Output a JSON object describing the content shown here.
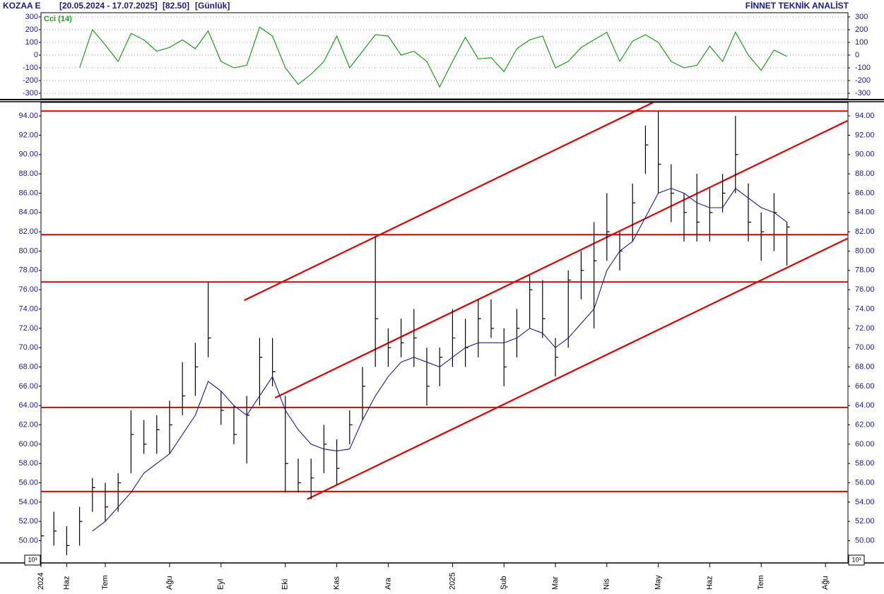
{
  "header": {
    "symbol": "KOZAA E",
    "range": "[20.05.2024 - 17.07.2025]",
    "last": "[82.50]",
    "period": "[Günlük]",
    "brand": "FİNNET TEKNİK ANALİST",
    "scale_note": "10³"
  },
  "chart_data": [
    {
      "type": "line",
      "title": "Cci (14)",
      "color": "#1e9e1e",
      "ylim": [
        -344,
        333
      ],
      "yticks": [
        300,
        200,
        100,
        0,
        -100,
        -200,
        -300
      ],
      "grid": true,
      "values": [
        null,
        null,
        null,
        -100,
        200,
        80,
        -50,
        170,
        120,
        30,
        60,
        120,
        50,
        190,
        -50,
        -100,
        -80,
        220,
        150,
        -100,
        -230,
        -150,
        -50,
        150,
        -100,
        30,
        160,
        150,
        0,
        30,
        -50,
        -250,
        -50,
        140,
        -30,
        -20,
        -130,
        50,
        120,
        150,
        -100,
        -50,
        60,
        120,
        180,
        -50,
        110,
        160,
        100,
        -50,
        -100,
        -80,
        70,
        -50,
        180,
        0,
        -120,
        40,
        -10
      ]
    },
    {
      "type": "ohlc",
      "color": "#000000",
      "ylim": [
        47.7,
        95.4
      ],
      "yticks": [
        {
          "value": 50,
          "label": "50.00"
        },
        {
          "value": 52,
          "label": "52.00"
        },
        {
          "value": 54,
          "label": "54.00"
        },
        {
          "value": 56,
          "label": "56.00"
        },
        {
          "value": 58,
          "label": "58.00"
        },
        {
          "value": 60,
          "label": "60.00"
        },
        {
          "value": 62,
          "label": "62.00"
        },
        {
          "value": 64,
          "label": "64.00"
        },
        {
          "value": 66,
          "label": "66.00"
        },
        {
          "value": 68,
          "label": "68.00"
        },
        {
          "value": 70,
          "label": "70.00"
        },
        {
          "value": 72,
          "label": "72.00"
        },
        {
          "value": 74,
          "label": "74.00"
        },
        {
          "value": 76,
          "label": "76.00"
        },
        {
          "value": 78,
          "label": "78.00"
        },
        {
          "value": 80,
          "label": "80.00"
        },
        {
          "value": 82,
          "label": "82.00"
        },
        {
          "value": 84,
          "label": "84.00"
        },
        {
          "value": 86,
          "label": "86.00"
        },
        {
          "value": 88,
          "label": "88.00"
        },
        {
          "value": 90,
          "label": "90.00"
        },
        {
          "value": 92,
          "label": "92.00"
        },
        {
          "value": 94,
          "label": "94.00"
        }
      ],
      "categories": [
        "2024",
        null,
        "Haz",
        null,
        null,
        "Tem",
        null,
        null,
        null,
        null,
        "Ağu",
        null,
        null,
        null,
        "Eyl",
        null,
        null,
        null,
        null,
        "Eki",
        null,
        null,
        null,
        "Kas",
        null,
        null,
        null,
        "Ara",
        null,
        null,
        null,
        null,
        "2025",
        null,
        null,
        null,
        "Şub",
        null,
        null,
        null,
        "Mar",
        null,
        null,
        null,
        "Nis",
        null,
        null,
        null,
        "May",
        null,
        null,
        null,
        "Haz",
        null,
        null,
        null,
        "Tem",
        null,
        null,
        null,
        null,
        "Ağu",
        null
      ],
      "high": [
        52,
        53,
        51.5,
        53.5,
        56.5,
        56,
        57,
        63.5,
        62.5,
        63,
        64.5,
        68.5,
        70.5,
        76.8,
        65.5,
        64,
        65,
        71,
        71,
        65,
        58.5,
        58.5,
        62,
        60.5,
        63.5,
        68,
        81.5,
        72,
        73,
        74,
        70,
        70,
        74,
        73,
        75,
        75,
        72,
        74,
        77.5,
        77,
        71,
        78,
        80,
        83,
        86,
        82,
        87,
        93,
        94.5,
        89,
        86,
        88,
        86.5,
        88,
        94,
        87,
        84,
        86,
        83,
        null,
        null,
        null,
        null
      ],
      "low": [
        50,
        49.5,
        48.5,
        49.5,
        53,
        52,
        53,
        57,
        59,
        59,
        59,
        63,
        65,
        69,
        62,
        60,
        58,
        64,
        66,
        55,
        55,
        54.3,
        57,
        55.8,
        60,
        62.5,
        68,
        68,
        69,
        68,
        64,
        66,
        68,
        68,
        69,
        71,
        66,
        69,
        72,
        71,
        67,
        70,
        75,
        72,
        79,
        78,
        81,
        88,
        86,
        83,
        81,
        81,
        81,
        84,
        86,
        81,
        79,
        80,
        78.5,
        null,
        null,
        null,
        null
      ],
      "close": [
        50.5,
        51,
        49.5,
        52,
        55.5,
        53.5,
        56,
        61,
        60,
        61.5,
        62,
        65,
        68,
        71,
        63.5,
        61,
        63,
        69,
        67.5,
        58,
        56,
        56.5,
        60,
        57.5,
        62,
        66,
        73,
        70,
        70.5,
        71,
        66,
        69,
        71,
        70,
        73,
        72,
        68,
        72,
        76,
        73,
        69,
        77,
        78,
        79,
        82,
        80,
        85,
        91,
        89,
        86,
        84,
        83,
        84,
        86,
        90,
        83,
        82,
        84,
        82.5,
        null,
        null,
        null,
        null
      ],
      "ma": {
        "color": "#1a1aa0",
        "values": [
          null,
          null,
          null,
          null,
          51,
          52,
          53.5,
          55,
          57,
          58,
          59,
          61,
          63,
          66.5,
          65.5,
          64,
          63,
          65,
          67,
          63.5,
          61.5,
          60,
          59.5,
          59.3,
          59.5,
          62.5,
          65,
          67,
          68.5,
          69,
          68.5,
          68,
          69,
          70,
          70.5,
          70.5,
          70.5,
          71,
          72,
          71.5,
          70,
          71,
          72.5,
          74,
          78,
          80,
          81,
          83.5,
          86,
          86.5,
          86,
          85,
          84.5,
          84.5,
          86.5,
          85.5,
          84.5,
          84,
          83,
          null,
          null,
          null,
          null
        ]
      },
      "levels": {
        "color": "#e00000",
        "values": [
          94.5,
          81.7,
          76.8,
          63.8,
          55.1
        ]
      },
      "trendlines": {
        "color": "#e00000",
        "lines": [
          {
            "x": [
              15.8,
              47.6
            ],
            "y": [
              74.9,
              95.4
            ]
          },
          {
            "x": [
              18.2,
              62.7
            ],
            "y": [
              64.8,
              93.5
            ]
          },
          {
            "x": [
              20.7,
              62.7
            ],
            "y": [
              54.3,
              81.3
            ]
          }
        ]
      }
    }
  ]
}
